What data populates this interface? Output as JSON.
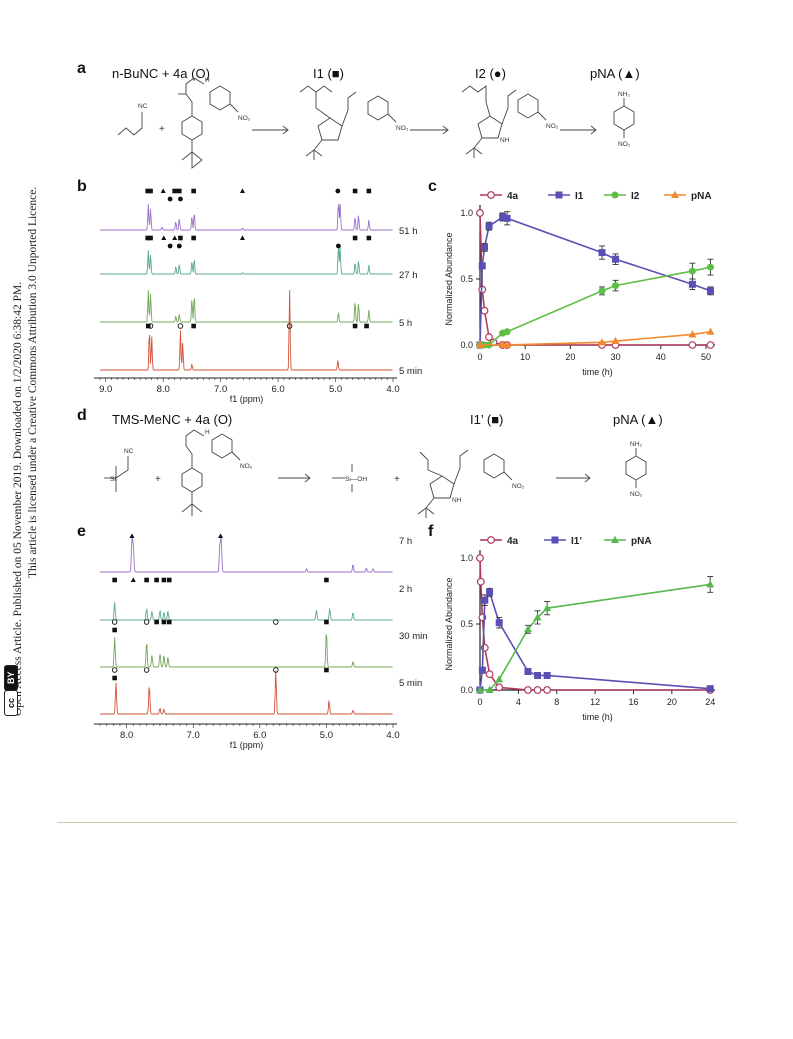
{
  "sidebar": {
    "line1": "Open Access Article. Published on 05 November 2019. Downloaded on 1/2/2020 6:38:42 PM.",
    "line2": "This article is licensed under a Creative Commons Attribution 3.0 Unported Licence.",
    "cc_label": "cc",
    "by_label": "BY"
  },
  "panel_a": {
    "label": "a",
    "reactant": "n-BuNC + 4a (O)",
    "i1": "I1 (■)",
    "i2": "I2 (●)",
    "pna": "pNA (▲)",
    "plus": "+",
    "nc": "NC",
    "no2": "NO₂",
    "nh2": "NH₂",
    "h": "H",
    "n": "N",
    "nh": "NH",
    "o": "O"
  },
  "panel_b": {
    "label": "b",
    "times": [
      "51 h",
      "27 h",
      "5 h",
      "5 min"
    ],
    "xlabel": "f1 (ppm)",
    "ticks": [
      "9.0",
      "8.0",
      "7.0",
      "6.0",
      "5.0",
      "4.0"
    ],
    "colors": [
      "#9b72c9",
      "#5aa898",
      "#73a85a",
      "#d2533a"
    ]
  },
  "panel_c": {
    "label": "c",
    "chart_data": {
      "type": "line",
      "ylabel": "Normalized Abundance",
      "xlabel": "time (h)",
      "xlim": [
        0,
        52
      ],
      "ylim": [
        0,
        1.0
      ],
      "xticks": [
        0,
        10,
        20,
        30,
        40,
        50
      ],
      "yticks": [
        0.0,
        0.5,
        1.0
      ],
      "series": [
        {
          "name": "4a",
          "color": "#b03a5b",
          "marker": "open-circle",
          "x": [
            0,
            0.5,
            1,
            2,
            3,
            5,
            6,
            27,
            30,
            47,
            51
          ],
          "y": [
            1.0,
            0.42,
            0.26,
            0.06,
            0.02,
            0.0,
            0.0,
            0.0,
            0.0,
            0.0,
            0.0
          ]
        },
        {
          "name": "I1",
          "color": "#5a4fb5",
          "marker": "square",
          "x": [
            0,
            0.5,
            1,
            2,
            5,
            6,
            27,
            30,
            47,
            51
          ],
          "y": [
            0.0,
            0.6,
            0.74,
            0.9,
            0.97,
            0.96,
            0.7,
            0.65,
            0.46,
            0.41
          ],
          "err": [
            0,
            0.02,
            0.03,
            0.03,
            0.03,
            0.05,
            0.05,
            0.04,
            0.04,
            0.03
          ]
        },
        {
          "name": "I2",
          "color": "#5dbf45",
          "marker": "circle",
          "x": [
            0,
            1,
            2,
            5,
            6,
            27,
            30,
            47,
            51
          ],
          "y": [
            0.0,
            0.0,
            0.0,
            0.09,
            0.1,
            0.41,
            0.45,
            0.56,
            0.59
          ],
          "err": [
            0,
            0,
            0,
            0.01,
            0.01,
            0.03,
            0.04,
            0.06,
            0.06
          ]
        },
        {
          "name": "pNA",
          "color": "#f08a2e",
          "marker": "triangle",
          "x": [
            0,
            5,
            6,
            27,
            30,
            47,
            51
          ],
          "y": [
            0.0,
            0.0,
            0.0,
            0.02,
            0.03,
            0.08,
            0.1
          ]
        }
      ],
      "legend": "top"
    }
  },
  "panel_d": {
    "label": "d",
    "reactant": "TMS-MeNC + 4a (O)",
    "i1p": "I1’ (■)",
    "pna": "pNA (▲)",
    "plus": "+",
    "nc": "NC",
    "si": "Si",
    "sioh": "Si—OH",
    "no2": "NO₂",
    "nh2": "NH₂",
    "h": "H",
    "n": "N",
    "nh": "NH",
    "o": "O"
  },
  "panel_e": {
    "label": "e",
    "times": [
      "7 h",
      "2 h",
      "30 min",
      "5 min"
    ],
    "xlabel": "f1 (ppm)",
    "ticks": [
      "8.0",
      "7.0",
      "6.0",
      "5.0",
      "4.0"
    ],
    "colors": [
      "#9b72c9",
      "#5aa898",
      "#73a85a",
      "#d2533a"
    ]
  },
  "panel_f": {
    "label": "f",
    "chart_data": {
      "type": "line",
      "ylabel": "Normalized Abundance",
      "xlabel": "time (h)",
      "xlim": [
        0,
        24.5
      ],
      "ylim": [
        0,
        1.0
      ],
      "xticks": [
        0,
        4,
        8,
        12,
        16,
        20,
        24
      ],
      "yticks": [
        0.0,
        0.5,
        1.0
      ],
      "series": [
        {
          "name": "4a",
          "color": "#b03a5b",
          "marker": "open-circle",
          "x": [
            0,
            0.08,
            0.25,
            0.5,
            1,
            2,
            5,
            6,
            7,
            24
          ],
          "y": [
            1.0,
            0.82,
            0.55,
            0.32,
            0.12,
            0.02,
            0.0,
            0.0,
            0.0,
            0.0
          ]
        },
        {
          "name": "I1’",
          "color": "#5a4fb5",
          "marker": "square",
          "x": [
            0,
            0.25,
            0.5,
            1,
            2,
            5,
            6,
            7,
            24
          ],
          "y": [
            0.0,
            0.15,
            0.68,
            0.74,
            0.51,
            0.14,
            0.11,
            0.11,
            0.01
          ],
          "err": [
            0,
            0.02,
            0.04,
            0.03,
            0.04,
            0.02,
            0.02,
            0.02,
            0.01
          ]
        },
        {
          "name": "pNA",
          "color": "#57b84f",
          "marker": "triangle",
          "x": [
            0,
            1,
            2,
            5,
            6,
            7,
            24
          ],
          "y": [
            0.0,
            0.0,
            0.08,
            0.46,
            0.55,
            0.62,
            0.8
          ],
          "err": [
            0,
            0,
            0,
            0.03,
            0.05,
            0.05,
            0.06
          ]
        }
      ],
      "legend": "top"
    }
  }
}
